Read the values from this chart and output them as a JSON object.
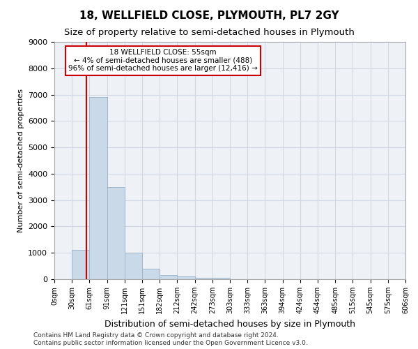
{
  "title1": "18, WELLFIELD CLOSE, PLYMOUTH, PL7 2GY",
  "title2": "Size of property relative to semi-detached houses in Plymouth",
  "xlabel": "Distribution of semi-detached houses by size in Plymouth",
  "ylabel": "Number of semi-detached properties",
  "bin_labels": [
    "0sqm",
    "30sqm",
    "61sqm",
    "91sqm",
    "121sqm",
    "151sqm",
    "182sqm",
    "212sqm",
    "242sqm",
    "273sqm",
    "303sqm",
    "333sqm",
    "363sqm",
    "394sqm",
    "424sqm",
    "454sqm",
    "485sqm",
    "515sqm",
    "545sqm",
    "575sqm",
    "606sqm"
  ],
  "bar_values": [
    0,
    1100,
    6900,
    3500,
    1000,
    400,
    150,
    100,
    50,
    50,
    0,
    0,
    0,
    0,
    0,
    0,
    0,
    0,
    0,
    0
  ],
  "bar_color": "#c9d9e8",
  "bar_edge_color": "#a0b8cc",
  "annotation_title": "18 WELLFIELD CLOSE: 55sqm",
  "annotation_line1": "← 4% of semi-detached houses are smaller (488)",
  "annotation_line2": "96% of semi-detached houses are larger (12,416) →",
  "vline_color": "#cc0000",
  "annotation_box_color": "#ffffff",
  "annotation_box_edge": "#cc0000",
  "ylim": [
    0,
    9000
  ],
  "yticks": [
    0,
    1000,
    2000,
    3000,
    4000,
    5000,
    6000,
    7000,
    8000,
    9000
  ],
  "grid_color": "#d0d8e4",
  "bg_color": "#eef2f7",
  "footnote1": "Contains HM Land Registry data © Crown copyright and database right 2024.",
  "footnote2": "Contains public sector information licensed under the Open Government Licence v3.0.",
  "vline_x_sqm": 55,
  "bin_starts": [
    0,
    30,
    61,
    91,
    121,
    151,
    182,
    212,
    242,
    273,
    303,
    333,
    363,
    394,
    424,
    454,
    485,
    515,
    545,
    575,
    606
  ]
}
